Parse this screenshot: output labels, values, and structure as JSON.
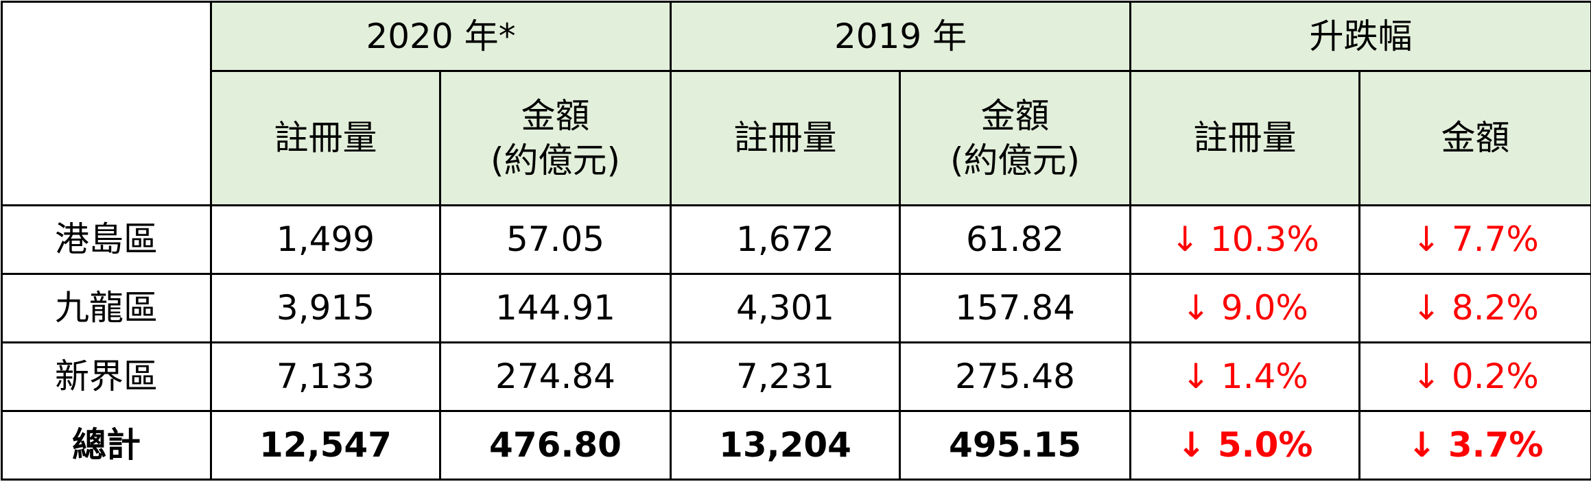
{
  "header": {
    "groups": [
      "2020 年*",
      "2019 年",
      "升跌幅"
    ],
    "subheaders": [
      [
        "註冊量"
      ],
      [
        "金額",
        "(約億元)"
      ],
      [
        "註冊量"
      ],
      [
        "金額",
        "(約億元)"
      ],
      [
        "註冊量"
      ],
      [
        "金額"
      ]
    ]
  },
  "rows": [
    {
      "label": "港島區",
      "cells": [
        "1,499",
        "57.05",
        "1,672",
        "61.82",
        "↓ 10.3%",
        "↓ 7.7%"
      ]
    },
    {
      "label": "九龍區",
      "cells": [
        "3,915",
        "144.91",
        "4,301",
        "157.84",
        "↓ 9.0%",
        "↓ 8.2%"
      ]
    },
    {
      "label": "新界區",
      "cells": [
        "7,133",
        "274.84",
        "7,231",
        "275.48",
        "↓ 1.4%",
        "↓ 0.2%"
      ]
    }
  ],
  "total": {
    "label": "總計",
    "cells": [
      "12,547",
      "476.80",
      "13,204",
      "495.15",
      "↓ 5.0%",
      "↓ 3.7%"
    ]
  }
}
